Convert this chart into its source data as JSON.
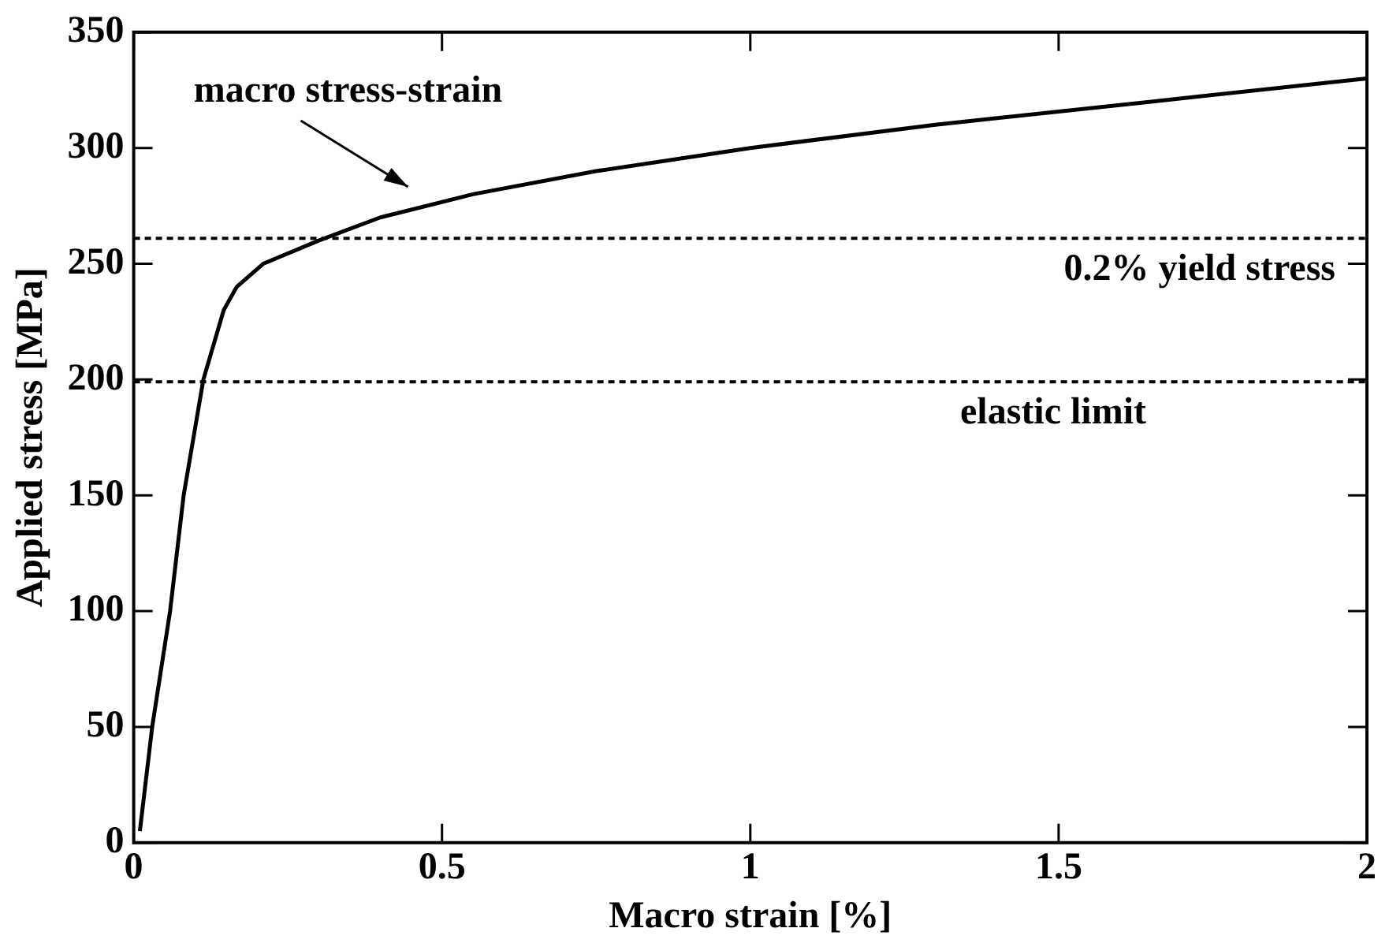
{
  "chart_data": {
    "type": "line",
    "xlabel": "Macro strain [%]",
    "ylabel": "Applied stress [MPa]",
    "series": [
      {
        "color": "#000000",
        "x": [
          0.01,
          0.03,
          0.059,
          0.081,
          0.097,
          0.113,
          0.146,
          0.167,
          0.21,
          0.3,
          0.4,
          0.55,
          0.75,
          1.0,
          1.3,
          1.65,
          2.0
        ],
        "values": [
          5,
          50,
          100,
          150,
          175,
          200,
          230,
          240,
          250,
          260,
          270,
          280,
          290,
          300,
          310,
          320,
          330
        ]
      }
    ],
    "xlim": [
      0,
      2
    ],
    "xticks": [
      0,
      0.5,
      1,
      1.5,
      2
    ],
    "ylim": [
      0,
      350
    ],
    "yticks": [
      0,
      50,
      100,
      150,
      200,
      250,
      300,
      350
    ],
    "ref_lines": [
      {
        "axis": "y",
        "value": 261,
        "label": "0.2% yield stress",
        "color": "#000000",
        "line_style": "dotted"
      },
      {
        "axis": "y",
        "value": 199,
        "label": "elastic limit",
        "color": "#000000",
        "line_style": "dotted"
      }
    ],
    "annotations": [
      {
        "text": "macro stress-strain",
        "x": 0.45,
        "y": 275
      }
    ],
    "grid": false,
    "legend": false,
    "marker": "none",
    "line_style": "solid"
  }
}
